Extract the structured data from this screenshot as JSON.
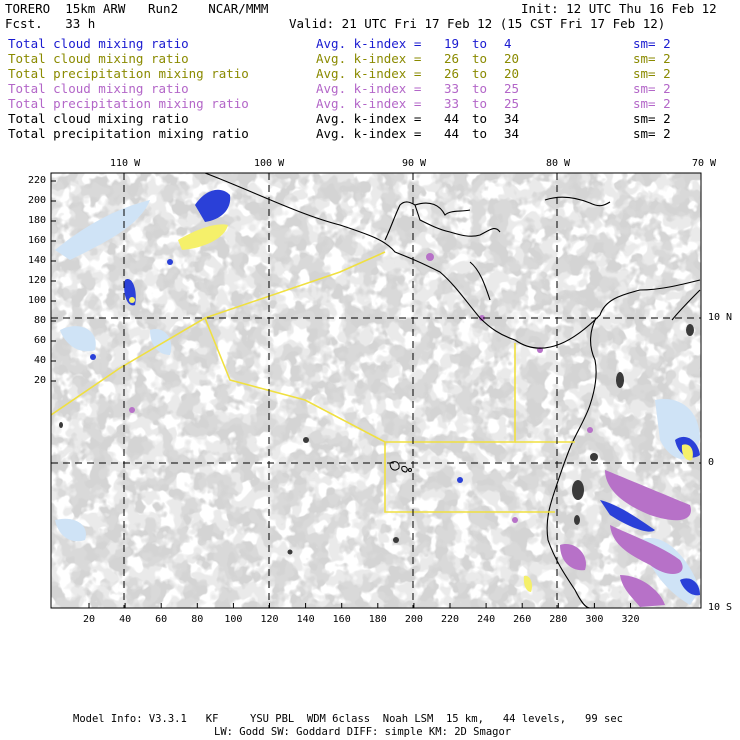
{
  "header": {
    "model": "TORERO  15km ARW   Run2    NCAR/MMM",
    "fcst": "Fcst.   33 h",
    "init": "Init: 12 UTC Thu 16 Feb 12",
    "valid": "Valid: 21 UTC Fri 17 Feb 12 (15 CST Fri 17 Feb 12)"
  },
  "legend_rows": [
    {
      "label": "Total cloud mixing ratio",
      "kindex": "Avg. k-index = ",
      "from": "19",
      "to_word": "to",
      "to": "4",
      "sm": "sm= 2",
      "color": "#1a1ad0"
    },
    {
      "label": "Total cloud mixing ratio",
      "kindex": "Avg. k-index = ",
      "from": "26",
      "to_word": "to",
      "to": "20",
      "sm": "sm= 2",
      "color": "#8a8a00"
    },
    {
      "label": "Total precipitation mixing ratio",
      "kindex": "Avg. k-index = ",
      "from": "26",
      "to_word": "to",
      "to": "20",
      "sm": "sm= 2",
      "color": "#8a8a00"
    },
    {
      "label": "Total cloud mixing ratio",
      "kindex": "Avg. k-index = ",
      "from": "33",
      "to_word": "to",
      "to": "25",
      "sm": "sm= 2",
      "color": "#b366c8"
    },
    {
      "label": "Total precipitation mixing ratio",
      "kindex": "Avg. k-index = ",
      "from": "33",
      "to_word": "to",
      "to": "25",
      "sm": "sm= 2",
      "color": "#b366c8"
    },
    {
      "label": "Total cloud mixing ratio",
      "kindex": "Avg. k-index = ",
      "from": "44",
      "to_word": "to",
      "to": "34",
      "sm": "sm= 2",
      "color": "#000000"
    },
    {
      "label": "Total precipitation mixing ratio",
      "kindex": "Avg. k-index = ",
      "from": "44",
      "to_word": "to",
      "to": "34",
      "sm": "sm= 2",
      "color": "#000000"
    }
  ],
  "map": {
    "lon_labels": [
      "110 W",
      "100 W",
      "90 W",
      "80 W",
      "70 W"
    ],
    "lat_labels": [
      "10 N",
      "0",
      "10 S"
    ],
    "y_ticks": [
      "220",
      "200",
      "180",
      "160",
      "140",
      "120",
      "100",
      "80",
      "60",
      "40",
      "20"
    ],
    "x_ticks": [
      "20",
      "40",
      "60",
      "80",
      "100",
      "120",
      "140",
      "160",
      "180",
      "200",
      "220",
      "240",
      "260",
      "280",
      "300",
      "320"
    ],
    "colors": {
      "cloud_gray": "#a9a9a9",
      "dark_core": "#3a3a3a",
      "blue": "#2a40d8",
      "light_blue": "#cfe3f6",
      "yellow": "#f5f06a",
      "purple": "#b771c8",
      "region_outline": "#f0e040"
    }
  },
  "footer": {
    "line1": "Model Info: V3.3.1   KF     YSU PBL  WDM 6class  Noah LSM  15 km,   44 levels,   99 sec",
    "line2": "LW: Godd SW: Goddard DIFF: simple KM: 2D Smagor"
  }
}
